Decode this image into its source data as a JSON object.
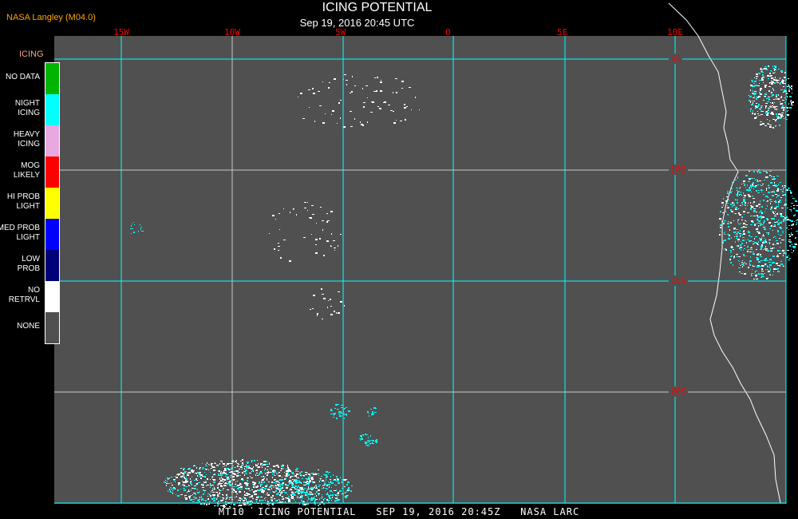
{
  "header": {
    "credit": "NASA Langley (M04.0)",
    "title": "ICING POTENTIAL",
    "subtitle": "Sep 19, 2016 20:45 UTC"
  },
  "legend": {
    "title": "ICING",
    "items": [
      {
        "label": "NO DATA",
        "color": "#00b400"
      },
      {
        "label": "NIGHT\nICING",
        "color": "#00ffff"
      },
      {
        "label": "HEAVY\nICING",
        "color": "#e8a8e0"
      },
      {
        "label": "MOG\nLIKELY",
        "color": "#ff0000"
      },
      {
        "label": "HI PROB\nLIGHT",
        "color": "#ffff00"
      },
      {
        "label": "MED PROB\nLIGHT",
        "color": "#0000ff"
      },
      {
        "label": "LOW\nPROB",
        "color": "#000078"
      },
      {
        "label": "NO\nRETRVL",
        "color": "#ffffff"
      },
      {
        "label": "NONE",
        "color": "#505050"
      }
    ]
  },
  "map": {
    "background_color": "#505050",
    "grid_color": "#00ffff",
    "longitudes": [
      "15W",
      "10W",
      "5W",
      "0",
      "5E",
      "10E"
    ],
    "latitudes": [
      "5S",
      "10S",
      "15S",
      "20S"
    ]
  },
  "footer": "MT10  ICING POTENTIAL   SEP 19, 2016 20:45Z   NASA LARC"
}
